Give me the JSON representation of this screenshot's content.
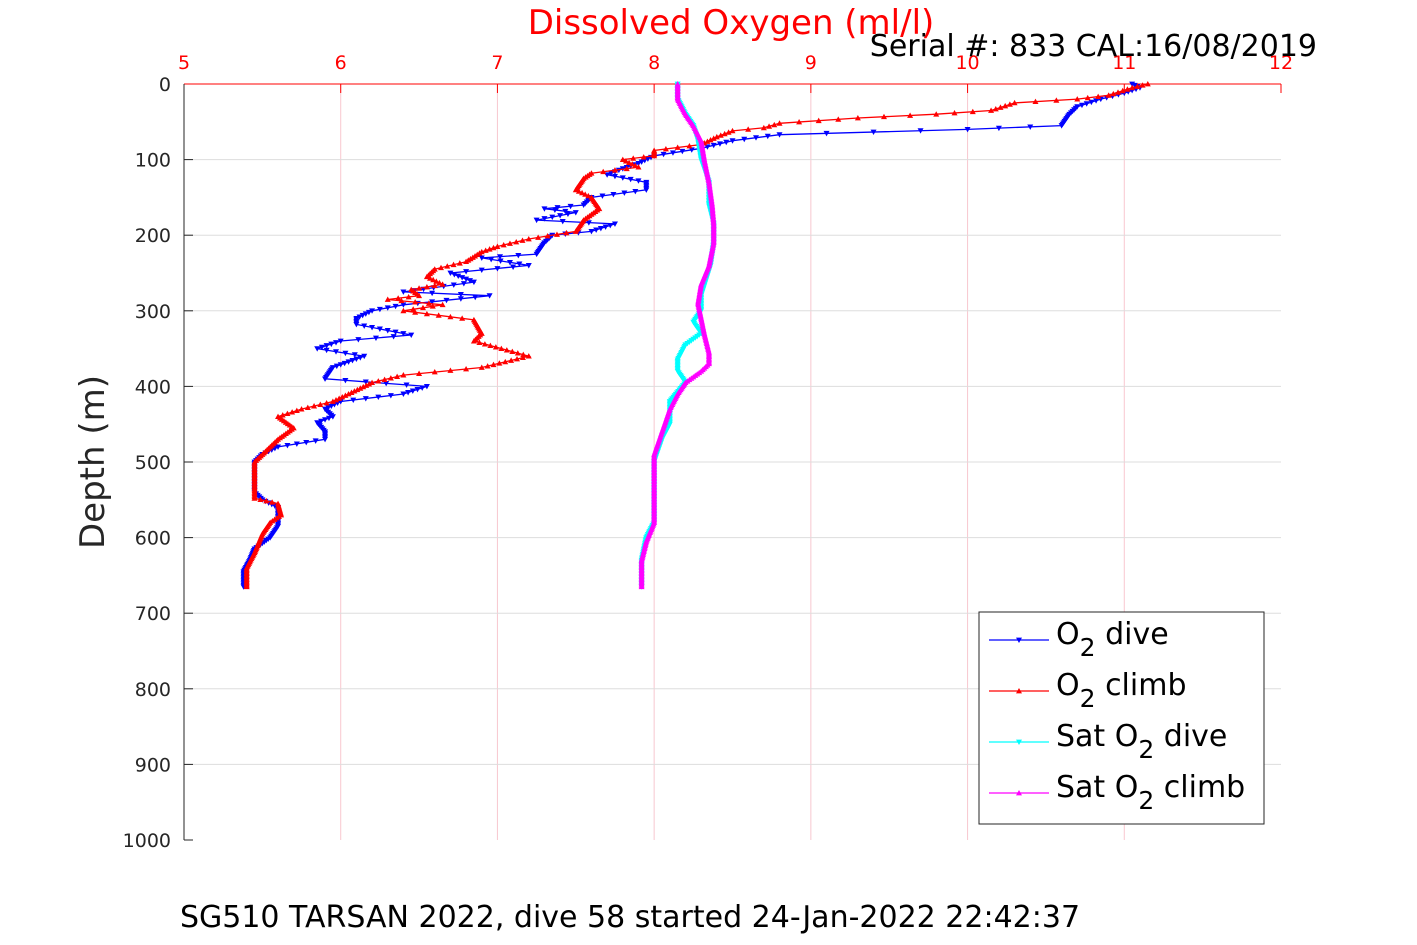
{
  "chart_data": {
    "type": "line",
    "title": "",
    "xlabel": "Dissolved Oxygen (ml/l)",
    "ylabel": "Depth (m)",
    "serial_text": "Serial #: 833  CAL:16/08/2019",
    "caption": "SG510 TARSAN 2022, dive 58 started 24-Jan-2022 22:42:37",
    "xlim": [
      5,
      12
    ],
    "ylim": [
      0,
      1000
    ],
    "y_reversed": true,
    "x_axis_location": "top",
    "xticks": [
      "5",
      "6",
      "7",
      "8",
      "9",
      "10",
      "11",
      "12"
    ],
    "yticks": [
      "0",
      "100",
      "200",
      "300",
      "400",
      "500",
      "600",
      "700",
      "800",
      "900",
      "1000"
    ],
    "grid": true,
    "legend_position": "bottom-right",
    "series": [
      {
        "name": "O2 dive",
        "legend": {
          "prefix": "O",
          "sub": "2",
          "suffix": " dive"
        },
        "color": "#0000ff",
        "marker": "triangle-down",
        "points": [
          [
            11.05,
            0
          ],
          [
            11.1,
            5
          ],
          [
            11.0,
            12
          ],
          [
            10.85,
            20
          ],
          [
            10.7,
            30
          ],
          [
            10.65,
            40
          ],
          [
            10.6,
            55
          ],
          [
            10.0,
            60
          ],
          [
            8.8,
            67
          ],
          [
            8.5,
            75
          ],
          [
            8.3,
            85
          ],
          [
            8.0,
            95
          ],
          [
            7.9,
            105
          ],
          [
            7.8,
            112
          ],
          [
            7.7,
            120
          ],
          [
            7.95,
            130
          ],
          [
            7.95,
            140
          ],
          [
            7.6,
            150
          ],
          [
            7.55,
            160
          ],
          [
            7.3,
            165
          ],
          [
            7.5,
            170
          ],
          [
            7.25,
            180
          ],
          [
            7.75,
            185
          ],
          [
            7.6,
            195
          ],
          [
            7.35,
            200
          ],
          [
            7.3,
            210
          ],
          [
            7.25,
            225
          ],
          [
            6.9,
            230
          ],
          [
            7.2,
            240
          ],
          [
            6.7,
            250
          ],
          [
            6.85,
            262
          ],
          [
            6.4,
            275
          ],
          [
            6.95,
            280
          ],
          [
            6.4,
            292
          ],
          [
            6.2,
            300
          ],
          [
            6.1,
            310
          ],
          [
            6.1,
            318
          ],
          [
            6.45,
            332
          ],
          [
            6.0,
            340
          ],
          [
            5.85,
            350
          ],
          [
            6.15,
            360
          ],
          [
            5.95,
            375
          ],
          [
            5.9,
            390
          ],
          [
            6.55,
            400
          ],
          [
            6.4,
            410
          ],
          [
            6.0,
            420
          ],
          [
            5.9,
            430
          ],
          [
            5.95,
            440
          ],
          [
            5.85,
            448
          ],
          [
            5.9,
            460
          ],
          [
            5.9,
            470
          ],
          [
            5.6,
            480
          ],
          [
            5.5,
            490
          ],
          [
            5.45,
            500
          ],
          [
            5.45,
            520
          ],
          [
            5.45,
            540
          ],
          [
            5.5,
            550
          ],
          [
            5.6,
            560
          ],
          [
            5.6,
            570
          ],
          [
            5.6,
            585
          ],
          [
            5.55,
            600
          ],
          [
            5.45,
            615
          ],
          [
            5.42,
            630
          ],
          [
            5.38,
            645
          ],
          [
            5.38,
            665
          ]
        ]
      },
      {
        "name": "O2 climb",
        "legend": {
          "prefix": "O",
          "sub": "2",
          "suffix": " climb"
        },
        "color": "#ff0000",
        "marker": "triangle-up",
        "points": [
          [
            11.15,
            0
          ],
          [
            11.05,
            5
          ],
          [
            10.9,
            15
          ],
          [
            10.7,
            20
          ],
          [
            10.3,
            25
          ],
          [
            10.15,
            35
          ],
          [
            9.8,
            40
          ],
          [
            9.3,
            45
          ],
          [
            8.8,
            52
          ],
          [
            8.7,
            58
          ],
          [
            8.5,
            62
          ],
          [
            8.4,
            70
          ],
          [
            8.3,
            80
          ],
          [
            8.0,
            88
          ],
          [
            8.0,
            95
          ],
          [
            7.8,
            100
          ],
          [
            7.9,
            110
          ],
          [
            7.6,
            118
          ],
          [
            7.55,
            125
          ],
          [
            7.5,
            140
          ],
          [
            7.6,
            150
          ],
          [
            7.65,
            165
          ],
          [
            7.55,
            180
          ],
          [
            7.5,
            195
          ],
          [
            7.2,
            205
          ],
          [
            7.0,
            215
          ],
          [
            6.9,
            222
          ],
          [
            6.8,
            235
          ],
          [
            6.6,
            245
          ],
          [
            6.55,
            255
          ],
          [
            6.65,
            265
          ],
          [
            6.45,
            272
          ],
          [
            6.5,
            280
          ],
          [
            6.3,
            285
          ],
          [
            6.65,
            292
          ],
          [
            6.4,
            300
          ],
          [
            6.85,
            312
          ],
          [
            6.9,
            330
          ],
          [
            6.85,
            340
          ],
          [
            7.2,
            360
          ],
          [
            6.9,
            375
          ],
          [
            6.4,
            385
          ],
          [
            6.2,
            395
          ],
          [
            6.05,
            410
          ],
          [
            5.95,
            420
          ],
          [
            5.75,
            430
          ],
          [
            5.6,
            440
          ],
          [
            5.7,
            455
          ],
          [
            5.6,
            470
          ],
          [
            5.55,
            480
          ],
          [
            5.5,
            490
          ],
          [
            5.45,
            500
          ],
          [
            5.45,
            520
          ],
          [
            5.45,
            540
          ],
          [
            5.45,
            548
          ],
          [
            5.6,
            555
          ],
          [
            5.62,
            570
          ],
          [
            5.55,
            580
          ],
          [
            5.5,
            595
          ],
          [
            5.48,
            605
          ],
          [
            5.45,
            620
          ],
          [
            5.4,
            640
          ],
          [
            5.4,
            665
          ]
        ]
      },
      {
        "name": "Sat O2 dive",
        "legend": {
          "prefix": "Sat O",
          "sub": "2",
          "suffix": " dive"
        },
        "color": "#00ffff",
        "marker": "triangle-down",
        "points": [
          [
            8.15,
            0
          ],
          [
            8.15,
            20
          ],
          [
            8.2,
            40
          ],
          [
            8.25,
            55
          ],
          [
            8.28,
            75
          ],
          [
            8.3,
            100
          ],
          [
            8.35,
            130
          ],
          [
            8.35,
            160
          ],
          [
            8.38,
            185
          ],
          [
            8.38,
            210
          ],
          [
            8.36,
            240
          ],
          [
            8.33,
            260
          ],
          [
            8.3,
            280
          ],
          [
            8.3,
            300
          ],
          [
            8.25,
            315
          ],
          [
            8.3,
            330
          ],
          [
            8.2,
            345
          ],
          [
            8.15,
            365
          ],
          [
            8.15,
            380
          ],
          [
            8.2,
            395
          ],
          [
            8.1,
            420
          ],
          [
            8.1,
            450
          ],
          [
            8.05,
            470
          ],
          [
            8.0,
            500
          ],
          [
            8.0,
            540
          ],
          [
            8.0,
            580
          ],
          [
            7.95,
            600
          ],
          [
            7.92,
            630
          ],
          [
            7.92,
            665
          ]
        ]
      },
      {
        "name": "Sat O2 climb",
        "legend": {
          "prefix": "Sat O",
          "sub": "2",
          "suffix": " climb"
        },
        "color": "#ff00ff",
        "marker": "triangle-up",
        "points": [
          [
            8.15,
            0
          ],
          [
            8.15,
            20
          ],
          [
            8.2,
            40
          ],
          [
            8.25,
            55
          ],
          [
            8.3,
            75
          ],
          [
            8.32,
            100
          ],
          [
            8.35,
            130
          ],
          [
            8.37,
            160
          ],
          [
            8.38,
            185
          ],
          [
            8.38,
            210
          ],
          [
            8.35,
            240
          ],
          [
            8.3,
            265
          ],
          [
            8.28,
            290
          ],
          [
            8.3,
            310
          ],
          [
            8.32,
            330
          ],
          [
            8.35,
            355
          ],
          [
            8.35,
            370
          ],
          [
            8.3,
            380
          ],
          [
            8.2,
            395
          ],
          [
            8.15,
            410
          ],
          [
            8.1,
            430
          ],
          [
            8.05,
            460
          ],
          [
            8.0,
            490
          ],
          [
            8.0,
            520
          ],
          [
            8.0,
            560
          ],
          [
            8.0,
            580
          ],
          [
            7.95,
            605
          ],
          [
            7.92,
            630
          ],
          [
            7.92,
            665
          ]
        ]
      }
    ]
  }
}
